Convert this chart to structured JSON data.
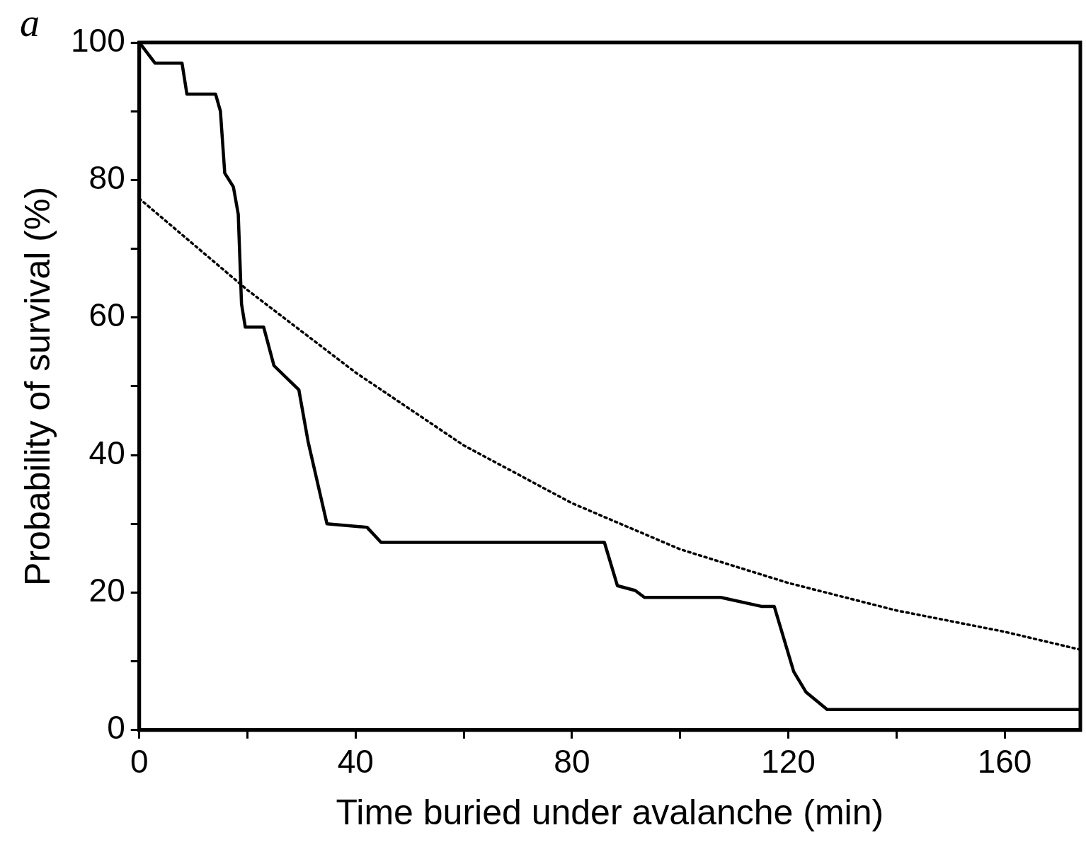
{
  "chart_data": {
    "type": "line",
    "xlabel": "Time buried under avalanche (min)",
    "ylabel": "Probability of survival (%)",
    "annotations": [
      "a"
    ],
    "xlim": [
      0,
      174
    ],
    "ylim": [
      0,
      100
    ],
    "xticks": [
      0,
      {
        "value": 20,
        "label": null
      },
      40,
      {
        "value": 60,
        "label": null
      },
      80,
      {
        "value": 100,
        "label": null
      },
      120,
      {
        "value": 140,
        "label": null
      },
      160
    ],
    "yticks": [
      0,
      {
        "value": 10,
        "label": null
      },
      20,
      {
        "value": 30,
        "label": null
      },
      40,
      {
        "value": 50,
        "label": null
      },
      60,
      {
        "value": 70,
        "label": null
      },
      80,
      {
        "value": 90,
        "label": null
      },
      100
    ],
    "grid": false,
    "legend": false,
    "marker": "none",
    "series": [
      {
        "color": "#000000",
        "line_style": "solid",
        "x": [
          0,
          2.9,
          7.9,
          8.8,
          14.1,
          15,
          15.8,
          17.4,
          18.3,
          18.9,
          19.6,
          23,
          24.9,
          29.5,
          31.2,
          34.7,
          42.1,
          44.7,
          86,
          88.4,
          91.7,
          93.4,
          107.5,
          115,
          117.4,
          121,
          123.3,
          127.2,
          174
        ],
        "values": [
          100,
          97,
          97,
          92.5,
          92.5,
          90,
          81,
          79,
          75,
          62,
          58.6,
          58.6,
          53,
          49.5,
          42,
          30,
          29.5,
          27.3,
          27.3,
          21,
          20.3,
          19.3,
          19.3,
          18,
          18,
          8.5,
          5.5,
          3,
          3
        ]
      },
      {
        "color": "#000000",
        "line_style": "dotted",
        "x": [
          0,
          20,
          40,
          60,
          80,
          100,
          120,
          140,
          160,
          174
        ],
        "values": [
          77.3,
          64,
          52,
          41.4,
          33,
          26.3,
          21.4,
          17.4,
          14.3,
          11.7
        ]
      }
    ]
  }
}
